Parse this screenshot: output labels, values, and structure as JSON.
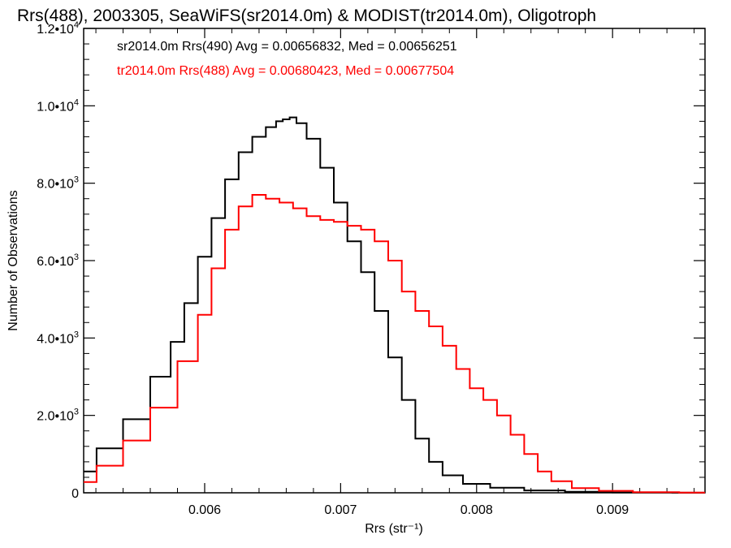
{
  "chart_data": {
    "type": "line",
    "title": "Rrs(488), 2003305, SeaWiFS(sr2014.0m) & MODIST(tr2014.0m), Oligotroph",
    "xlabel": "Rrs (str⁻¹)",
    "ylabel": "Number of Observations",
    "xlim": [
      0.00511,
      0.00968
    ],
    "ylim": [
      0,
      12000
    ],
    "xticks": [
      {
        "value": 0.006,
        "label": "0.006"
      },
      {
        "value": 0.007,
        "label": "0.007"
      },
      {
        "value": 0.008,
        "label": "0.008"
      },
      {
        "value": 0.009,
        "label": "0.009"
      }
    ],
    "yticks": [
      {
        "value": 0,
        "label": "0",
        "mant": "",
        "exp": ""
      },
      {
        "value": 2000,
        "label": "2.0•1.0e3",
        "mant": "2.0•10",
        "exp": "3"
      },
      {
        "value": 4000,
        "label": "4.0•1.0e3",
        "mant": "4.0•10",
        "exp": "3"
      },
      {
        "value": 6000,
        "label": "6.0•1.0e3",
        "mant": "6.0•10",
        "exp": "3"
      },
      {
        "value": 8000,
        "label": "8.0•1.0e3",
        "mant": "8.0•10",
        "exp": "3"
      },
      {
        "value": 10000,
        "label": "1.0•1.0e4",
        "mant": "1.0•10",
        "exp": "4"
      },
      {
        "value": 12000,
        "label": "1.2•1.0e4",
        "mant": "1.2•10",
        "exp": "4"
      }
    ],
    "grid": false,
    "legend": [
      {
        "text": "sr2014.0m Rrs(490) Avg = 0.00656832, Med = 0.00656251",
        "color": "#000000"
      },
      {
        "text": "tr2014.0m Rrs(488) Avg = 0.00680423, Med = 0.00677504",
        "color": "#ff0000"
      }
    ],
    "series": [
      {
        "color": "#000000",
        "x": [
          0.00511,
          0.0053,
          0.0055,
          0.0057,
          0.0058,
          0.0059,
          0.006,
          0.0061,
          0.0062,
          0.0063,
          0.0064,
          0.0065,
          0.00655,
          0.0066,
          0.00665,
          0.0067,
          0.0068,
          0.0069,
          0.007,
          0.0071,
          0.0072,
          0.0073,
          0.0074,
          0.0075,
          0.0076,
          0.0077,
          0.0078,
          0.008,
          0.0082,
          0.0085,
          0.0088,
          0.0092,
          0.00968
        ],
        "y": [
          550,
          1150,
          1900,
          3000,
          3900,
          4900,
          6100,
          7100,
          8100,
          8800,
          9200,
          9450,
          9600,
          9650,
          9700,
          9550,
          9150,
          8400,
          7500,
          6500,
          5700,
          4700,
          3500,
          2400,
          1400,
          800,
          450,
          230,
          130,
          60,
          25,
          8,
          2
        ]
      },
      {
        "color": "#ff0000",
        "x": [
          0.00511,
          0.0053,
          0.0055,
          0.0057,
          0.0059,
          0.006,
          0.0061,
          0.0062,
          0.0063,
          0.0064,
          0.0065,
          0.0066,
          0.0067,
          0.0068,
          0.0069,
          0.007,
          0.0071,
          0.0072,
          0.0073,
          0.0074,
          0.0075,
          0.0076,
          0.0077,
          0.0078,
          0.0079,
          0.008,
          0.0081,
          0.0082,
          0.0083,
          0.0084,
          0.0085,
          0.0086,
          0.0088,
          0.009,
          0.0093,
          0.00968
        ],
        "y": [
          280,
          700,
          1350,
          2200,
          3400,
          4600,
          5800,
          6800,
          7400,
          7700,
          7600,
          7500,
          7350,
          7150,
          7050,
          7000,
          6900,
          6800,
          6500,
          6000,
          5200,
          4700,
          4300,
          3800,
          3200,
          2700,
          2400,
          2000,
          1500,
          1000,
          550,
          300,
          120,
          50,
          15,
          5
        ]
      }
    ]
  }
}
